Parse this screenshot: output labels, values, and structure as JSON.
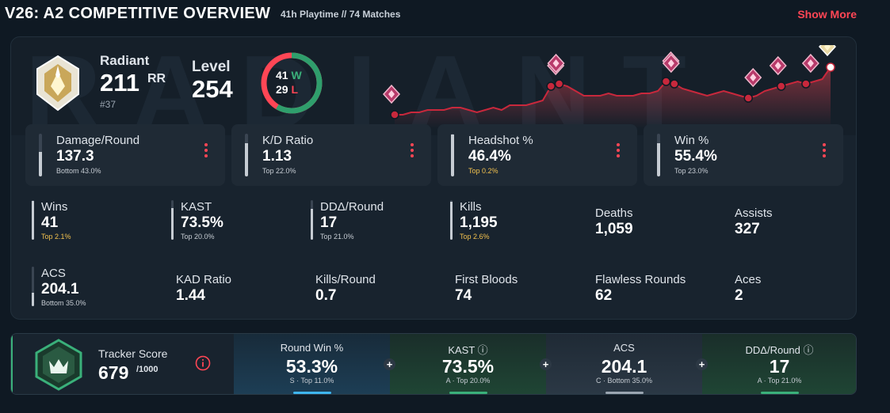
{
  "header": {
    "title": "V26: A2 COMPETITIVE OVERVIEW",
    "subtitle": "41h Playtime  //  74 Matches",
    "show_more": "Show More"
  },
  "rank": {
    "name": "Radiant",
    "rr": "211",
    "rr_unit": "RR",
    "position": "#37"
  },
  "level": {
    "label": "Level",
    "value": "254"
  },
  "record": {
    "wins": "41",
    "w": "W",
    "losses": "29",
    "l": "L",
    "win_fraction": 0.586
  },
  "watermark": "RADIANT",
  "colors": {
    "accent": "#ff4655",
    "win": "#3ab07a",
    "gold": "#f2c14e",
    "panel": "#18232e"
  },
  "top_stats": [
    {
      "label": "Damage/Round",
      "value": "137.3",
      "sub": "Bottom 43.0%",
      "fill": 0.57,
      "gold": false
    },
    {
      "label": "K/D Ratio",
      "value": "1.13",
      "sub": "Top 22.0%",
      "fill": 0.78,
      "gold": false
    },
    {
      "label": "Headshot %",
      "value": "46.4%",
      "sub": "Top 0.2%",
      "fill": 0.99,
      "gold": true
    },
    {
      "label": "Win %",
      "value": "55.4%",
      "sub": "Top 23.0%",
      "fill": 0.77,
      "gold": false
    }
  ],
  "grid": {
    "wins": {
      "label": "Wins",
      "value": "41",
      "sub": "Top 2.1%",
      "fill": 0.98
    },
    "kast": {
      "label": "KAST",
      "value": "73.5%",
      "sub": "Top 20.0%",
      "fill": 0.8
    },
    "dda": {
      "label": "DDΔ/Round",
      "value": "17",
      "sub": "Top 21.0%",
      "fill": 0.79
    },
    "kills": {
      "label": "Kills",
      "value": "1,195",
      "sub": "Top 2.6%",
      "fill": 0.97
    },
    "deaths": {
      "label": "Deaths",
      "value": "1,059"
    },
    "assists": {
      "label": "Assists",
      "value": "327"
    },
    "acs": {
      "label": "ACS",
      "value": "204.1",
      "sub": "Bottom 35.0%",
      "fill": 0.35
    },
    "kad": {
      "label": "KAD Ratio",
      "value": "1.44"
    },
    "kpr": {
      "label": "Kills/Round",
      "value": "0.7"
    },
    "fb": {
      "label": "First Bloods",
      "value": "74"
    },
    "flawless": {
      "label": "Flawless Rounds",
      "value": "62"
    },
    "aces": {
      "label": "Aces",
      "value": "2"
    }
  },
  "tracker": {
    "label": "Tracker Score",
    "value": "679",
    "max": "/1000",
    "segments": [
      {
        "label": "Round Win %",
        "value": "53.3%",
        "sub": "S · Top 11.0%",
        "color": "#3fb5ee"
      },
      {
        "label": "KAST ⓘ",
        "value": "73.5%",
        "sub": "A · Top 20.0%",
        "color": "#3ab07a"
      },
      {
        "label": "ACS",
        "value": "204.1",
        "sub": "C · Bottom 35.0%",
        "color": "#9aa5b1"
      },
      {
        "label": "DDΔ/Round ⓘ",
        "value": "17",
        "sub": "A · Top 21.0%",
        "color": "#3ab07a"
      }
    ]
  },
  "rr_history": {
    "values": [
      10,
      10,
      11,
      11,
      12,
      12,
      12,
      13,
      13,
      12,
      11,
      12,
      13,
      12,
      14,
      14,
      14,
      15,
      16,
      22,
      23,
      22,
      20,
      18,
      18,
      18,
      19,
      18,
      18,
      18,
      19,
      19,
      20,
      24,
      23,
      21,
      20,
      19,
      18,
      19,
      20,
      19,
      18,
      17,
      18,
      20,
      21,
      22,
      23,
      24,
      23,
      24,
      25,
      30
    ],
    "rank_up_markers": [
      19,
      20,
      33,
      34,
      43,
      47,
      50,
      53
    ]
  }
}
